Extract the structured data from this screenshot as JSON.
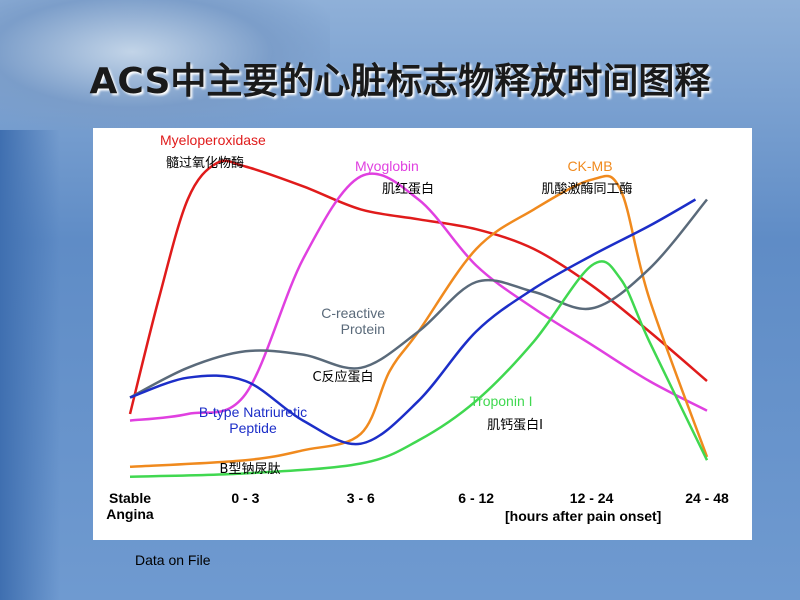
{
  "chart_data": {
    "type": "line",
    "title": "ACS中主要的心脏标志物释放时间图释",
    "x_note": "[hours after pain onset]",
    "source": "Data on File",
    "xlim": [
      0,
      5
    ],
    "ylim": [
      0,
      100
    ],
    "xticks": [
      {
        "value": 0,
        "label": "Stable Angina"
      },
      {
        "value": 1,
        "label": "0 - 3"
      },
      {
        "value": 2,
        "label": "3 - 6"
      },
      {
        "value": 3,
        "label": "6 - 12"
      },
      {
        "value": 4,
        "label": "12 - 24"
      },
      {
        "value": 5,
        "label": "24 - 48"
      }
    ],
    "series": [
      {
        "name": "Myeloperoxidase",
        "label_cn": "髓过氧化物酶",
        "color": "#e01b1b",
        "x": [
          0,
          0.25,
          0.5,
          0.75,
          1,
          1.5,
          2,
          2.5,
          3,
          3.5,
          4,
          4.5,
          5
        ],
        "values": [
          20,
          55,
          85,
          96,
          95,
          89,
          82,
          79,
          76,
          70,
          59,
          45,
          30
        ]
      },
      {
        "name": "Myoglobin",
        "label_cn": "肌红蛋白",
        "color": "#e040e0",
        "x": [
          0,
          0.5,
          1,
          1.5,
          2,
          2.5,
          3,
          3.5,
          4,
          4.5,
          5
        ],
        "values": [
          18,
          20,
          26,
          67,
          92,
          85,
          65,
          52,
          41,
          30,
          21
        ]
      },
      {
        "name": "CK-MB",
        "label_cn": "肌酸激酶同工酶",
        "color": "#f08a1e",
        "x": [
          0,
          1,
          1.5,
          2,
          2.25,
          2.5,
          3,
          3.5,
          4,
          4.25,
          4.5,
          5
        ],
        "values": [
          4,
          6,
          9,
          14,
          33,
          45,
          70,
          82,
          91,
          88,
          55,
          7
        ]
      },
      {
        "name": "C-reactive Protein",
        "label_cn": "C反应蛋白",
        "color": "#5a6a7a",
        "x": [
          0,
          0.5,
          1,
          1.5,
          2,
          2.5,
          3,
          3.5,
          4,
          4.5,
          5
        ],
        "values": [
          25,
          34,
          39,
          38,
          34,
          45,
          60,
          57,
          52,
          64,
          85
        ]
      },
      {
        "name": "Troponin I",
        "label_cn": "肌钙蛋白I",
        "color": "#40d850",
        "x": [
          0,
          1,
          2,
          2.5,
          3,
          3.5,
          4,
          4.25,
          4.5,
          5
        ],
        "values": [
          1,
          2,
          5,
          12,
          24,
          42,
          65,
          61,
          42,
          6
        ]
      },
      {
        "name": "B-type Natriuretic Peptide",
        "label_cn": "B型钠尿肽",
        "color": "#1c2ec8",
        "x": [
          0,
          0.5,
          1,
          1.5,
          2,
          2.5,
          3,
          3.5,
          4,
          4.5,
          4.9
        ],
        "values": [
          25,
          31,
          30,
          18,
          11,
          24,
          45,
          58,
          68,
          77,
          85
        ]
      }
    ]
  }
}
